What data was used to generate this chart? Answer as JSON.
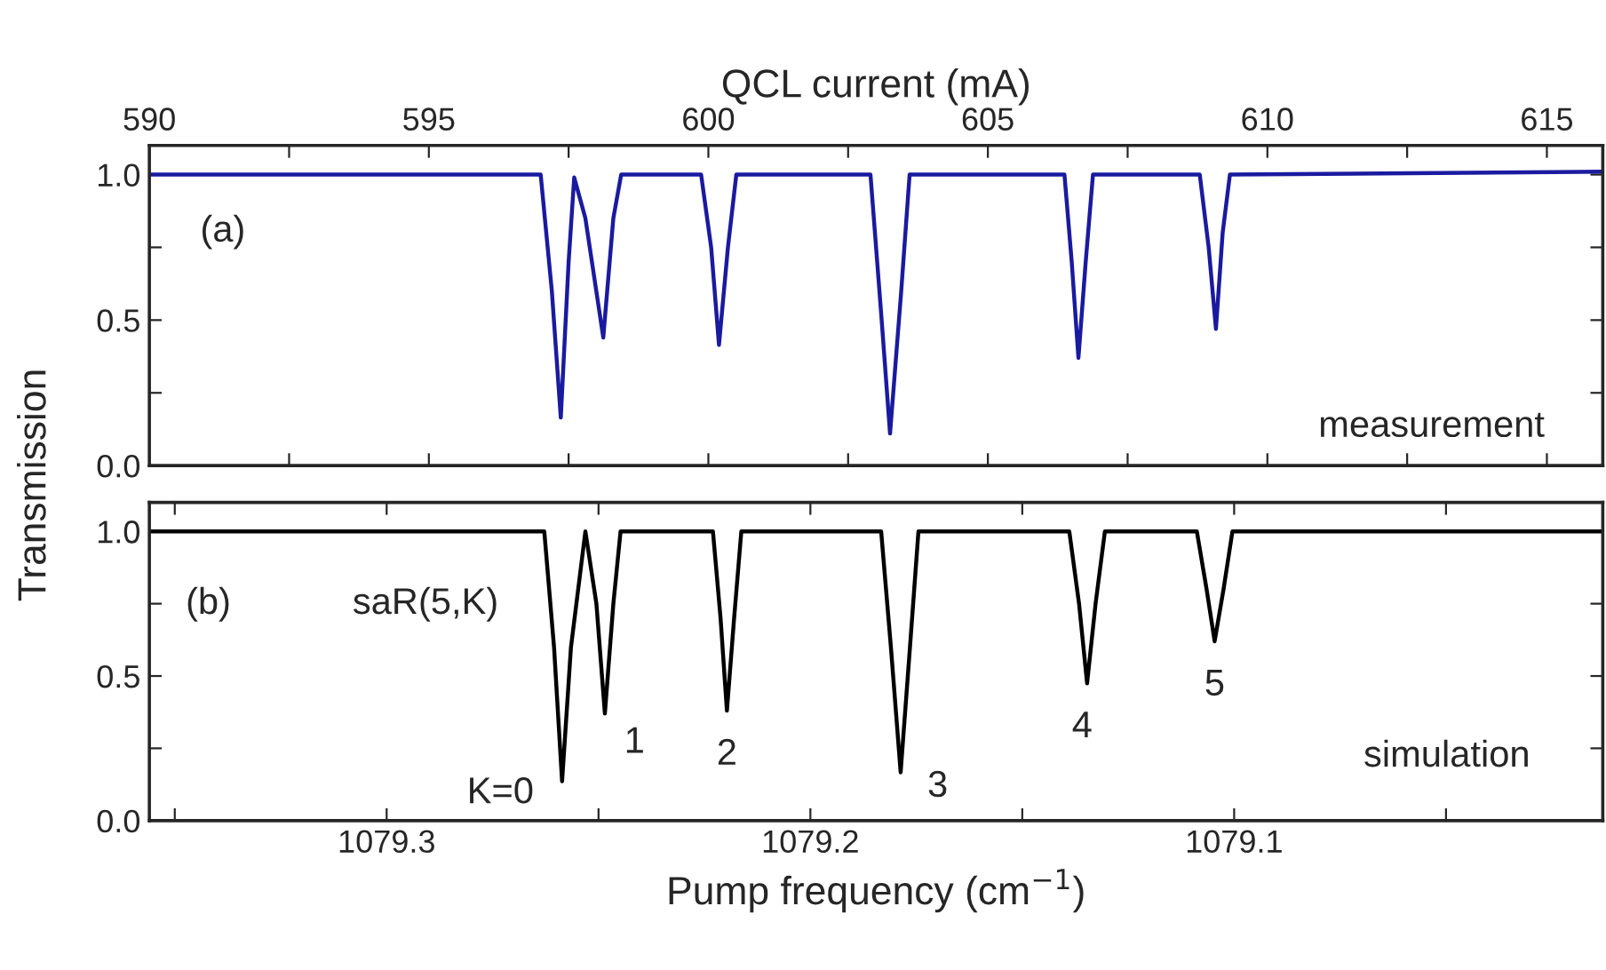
{
  "chart_data": [
    {
      "type": "line",
      "ylabel": "Transmission",
      "xlabel": "QCL current (mA)",
      "series": [
        {
          "color": "#1a1aa0",
          "x": [
            590,
            597.0,
            597.2,
            597.36,
            597.5,
            597.6,
            597.8,
            598.12,
            598.3,
            598.44,
            599.87,
            600.05,
            600.19,
            600.35,
            600.5,
            602.9,
            603.1,
            603.25,
            603.45,
            603.6,
            606.37,
            606.5,
            606.62,
            606.75,
            606.88,
            608.79,
            608.95,
            609.08,
            609.2,
            609.33,
            616
          ],
          "values": [
            1.0,
            1.0,
            0.6,
            0.165,
            0.7,
            0.99,
            0.85,
            0.44,
            0.85,
            1.0,
            1.0,
            0.75,
            0.415,
            0.75,
            1.0,
            1.0,
            0.5,
            0.11,
            0.6,
            1.0,
            1.0,
            0.7,
            0.37,
            0.7,
            1.0,
            1.0,
            0.75,
            0.47,
            0.8,
            1.0,
            1.01
          ]
        }
      ],
      "xlim": [
        590,
        616
      ],
      "xticks": [
        590,
        {
          "value": 592.5,
          "label": null
        },
        595,
        {
          "value": 597.5,
          "label": null
        },
        600,
        {
          "value": 602.5,
          "label": null
        },
        605,
        {
          "value": 607.5,
          "label": null
        },
        610,
        {
          "value": 612.5,
          "label": null
        },
        615
      ],
      "ylim": [
        0,
        1.1
      ],
      "yticks": [
        {
          "value": 0,
          "label": "0.0"
        },
        {
          "value": 0.25,
          "label": null
        },
        0.5,
        {
          "value": 0.75,
          "label": null
        },
        {
          "value": 1,
          "label": "1.0"
        }
      ],
      "annotations": [
        "(a)",
        "measurement"
      ],
      "grid": false,
      "legend": false
    },
    {
      "type": "line",
      "xlabel": "Pump frequency (cm$^{−1}$)",
      "series": [
        {
          "color": "#000000",
          "x": [
            1079.356,
            1079.2628,
            1079.2605,
            1079.2586,
            1079.2565,
            1079.2531,
            1079.2505,
            1079.2485,
            1079.2465,
            1079.2448,
            1079.223,
            1079.2212,
            1079.2197,
            1079.218,
            1079.2163,
            1079.1833,
            1079.181,
            1079.1787,
            1079.1765,
            1079.1745,
            1079.1389,
            1079.1366,
            1079.1347,
            1079.1327,
            1079.1305,
            1079.1088,
            1079.1065,
            1079.1046,
            1079.1025,
            1079.1004,
            1079.013
          ],
          "values": [
            1,
            1,
            0.6,
            0.136,
            0.6,
            1.0,
            0.75,
            0.37,
            0.75,
            1,
            1,
            0.7,
            0.38,
            0.7,
            1,
            1,
            0.6,
            0.167,
            0.6,
            1,
            1,
            0.75,
            0.475,
            0.75,
            1,
            1,
            0.8,
            0.62,
            0.8,
            1,
            1
          ]
        }
      ],
      "xlim": [
        1079.356,
        1079.013
      ],
      "xticks": [
        {
          "value": 1079.35,
          "label": null
        },
        1079.3,
        {
          "value": 1079.25,
          "label": null
        },
        1079.2,
        {
          "value": 1079.15,
          "label": null
        },
        1079.1,
        {
          "value": 1079.05,
          "label": null
        }
      ],
      "ylim": [
        0,
        1.1
      ],
      "yticks": [
        {
          "value": 0,
          "label": "0.0"
        },
        {
          "value": 0.25,
          "label": null
        },
        0.5,
        {
          "value": 0.75,
          "label": null
        },
        {
          "value": 1,
          "label": "1.0"
        }
      ],
      "annotations": [
        "(b)",
        "saR(5,K)",
        "simulation",
        {
          "text": "K=0",
          "x": 1079.2586,
          "y": 0.136
        },
        {
          "text": "1",
          "x": 1079.2485,
          "y": 0.37
        },
        {
          "text": "2",
          "x": 1079.2197,
          "y": 0.38
        },
        {
          "text": "3",
          "x": 1079.1787,
          "y": 0.167
        },
        {
          "text": "4",
          "x": 1079.1347,
          "y": 0.475
        },
        {
          "text": "5",
          "x": 1079.1046,
          "y": 0.62
        }
      ],
      "grid": false,
      "legend": false
    }
  ]
}
